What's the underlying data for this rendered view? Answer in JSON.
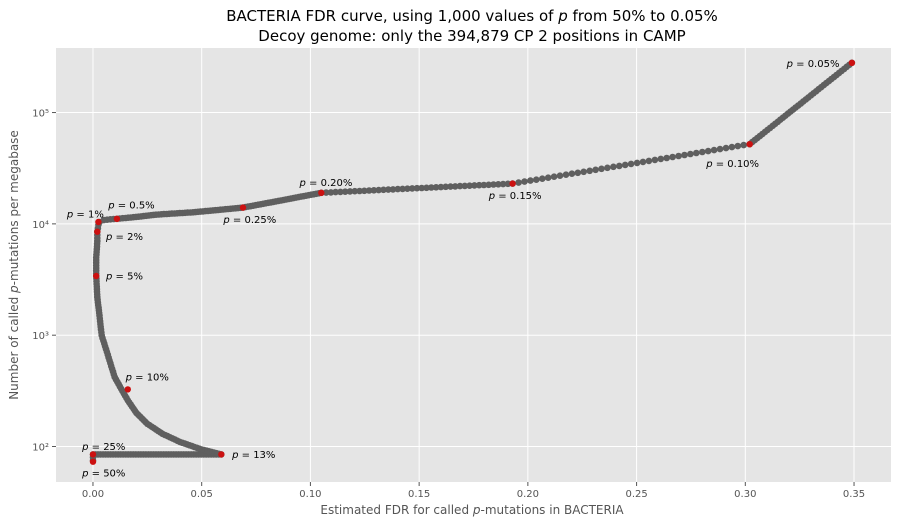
{
  "chart_data": {
    "type": "scatter",
    "title_line1": "BACTERIA FDR curve, using 1,000 values of p from 50% to 0.05%",
    "title_line2": "Decoy genome: only the 394,879 CP 2 positions in CAMP",
    "xlabel": "Estimated FDR for called p-mutations in BACTERIA",
    "ylabel": "Number of called p-mutations per megabase",
    "xlim": [
      -0.017,
      0.367
    ],
    "ylim": [
      48,
      380000
    ],
    "y_scale": "log",
    "grid": true,
    "x_ticks": [
      0.0,
      0.05,
      0.1,
      0.15,
      0.2,
      0.25,
      0.3,
      0.35
    ],
    "x_tick_labels": [
      "0.00",
      "0.05",
      "0.10",
      "0.15",
      "0.20",
      "0.25",
      "0.30",
      "0.35"
    ],
    "y_ticks": [
      100,
      1000,
      10000,
      100000
    ],
    "y_tick_labels": [
      "10²",
      "10³",
      "10⁴",
      "10⁵"
    ],
    "colors": {
      "background": "#e5e5e5",
      "grid": "#ffffff",
      "curve": "#666666",
      "points": "#5f5f5f",
      "highlight": "#cc1111"
    },
    "curve": {
      "x": [
        0.0,
        0.0,
        0.0,
        0.029,
        0.059,
        0.05,
        0.04,
        0.032,
        0.025,
        0.02,
        0.016,
        0.013,
        0.01,
        0.008,
        0.006,
        0.004,
        0.003,
        0.002,
        0.0015,
        0.0015,
        0.002,
        0.002,
        0.0025,
        0.003,
        0.005,
        0.008,
        0.011,
        0.015,
        0.021,
        0.029,
        0.046,
        0.069,
        0.105,
        0.193,
        0.302,
        0.349
      ],
      "y": [
        75,
        80,
        85,
        85,
        85,
        94,
        110,
        130,
        160,
        200,
        260,
        330,
        420,
        560,
        750,
        1000,
        1500,
        2200,
        3400,
        5000,
        7000,
        8500,
        9800,
        10400,
        10800,
        11000,
        11100,
        11300,
        11600,
        12100,
        12700,
        14000,
        19000,
        23000,
        52000,
        280000
      ]
    },
    "highlighted_points": [
      {
        "label": "p = 50%",
        "x": 0.0,
        "y": 73
      },
      {
        "label": "p = 25%",
        "x": 0.0,
        "y": 85
      },
      {
        "label": "p = 13%",
        "x": 0.059,
        "y": 85
      },
      {
        "label": "p = 10%",
        "x": 0.016,
        "y": 326
      },
      {
        "label": "p = 5%",
        "x": 0.0015,
        "y": 3400
      },
      {
        "label": "p = 2%",
        "x": 0.002,
        "y": 8500
      },
      {
        "label": "p = 1%",
        "x": 0.0025,
        "y": 10400
      },
      {
        "label": "p = 0.5%",
        "x": 0.011,
        "y": 11100
      },
      {
        "label": "p = 0.25%",
        "x": 0.069,
        "y": 14000
      },
      {
        "label": "p = 0.20%",
        "x": 0.105,
        "y": 19000
      },
      {
        "label": "p = 0.15%",
        "x": 0.193,
        "y": 23000
      },
      {
        "label": "p = 0.10%",
        "x": 0.302,
        "y": 52000
      },
      {
        "label": "p = 0.05%",
        "x": 0.349,
        "y": 280000
      }
    ],
    "annotations": [
      {
        "key": "p50",
        "text": "p = 50%",
        "x": -0.005,
        "y": 58,
        "anchor": "start"
      },
      {
        "key": "p25",
        "text": "p = 25%",
        "x": -0.005,
        "y": 100,
        "anchor": "start"
      },
      {
        "key": "p13",
        "text": "p = 13%",
        "x": 0.064,
        "y": 85,
        "anchor": "start"
      },
      {
        "key": "p10",
        "text": "p = 10%",
        "x": 0.015,
        "y": 420,
        "anchor": "start"
      },
      {
        "key": "p5",
        "text": "p = 5%",
        "x": 0.006,
        "y": 3400,
        "anchor": "start"
      },
      {
        "key": "p2",
        "text": "p = 2%",
        "x": 0.006,
        "y": 7700,
        "anchor": "start"
      },
      {
        "key": "p1",
        "text": "p = 1%",
        "x": -0.012,
        "y": 12300,
        "anchor": "start"
      },
      {
        "key": "p05",
        "text": "p = 0.5%",
        "x": 0.007,
        "y": 14800,
        "anchor": "start"
      },
      {
        "key": "p025",
        "text": "p = 0.25%",
        "x": 0.06,
        "y": 10900,
        "anchor": "start"
      },
      {
        "key": "p020",
        "text": "p = 0.20%",
        "x": 0.095,
        "y": 23500,
        "anchor": "start"
      },
      {
        "key": "p015",
        "text": "p = 0.15%",
        "x": 0.182,
        "y": 17900,
        "anchor": "start"
      },
      {
        "key": "p010",
        "text": "p = 0.10%",
        "x": 0.282,
        "y": 35000,
        "anchor": "start"
      },
      {
        "key": "p005",
        "text": "p = 0.05%",
        "x": 0.319,
        "y": 275000,
        "anchor": "start"
      }
    ]
  }
}
